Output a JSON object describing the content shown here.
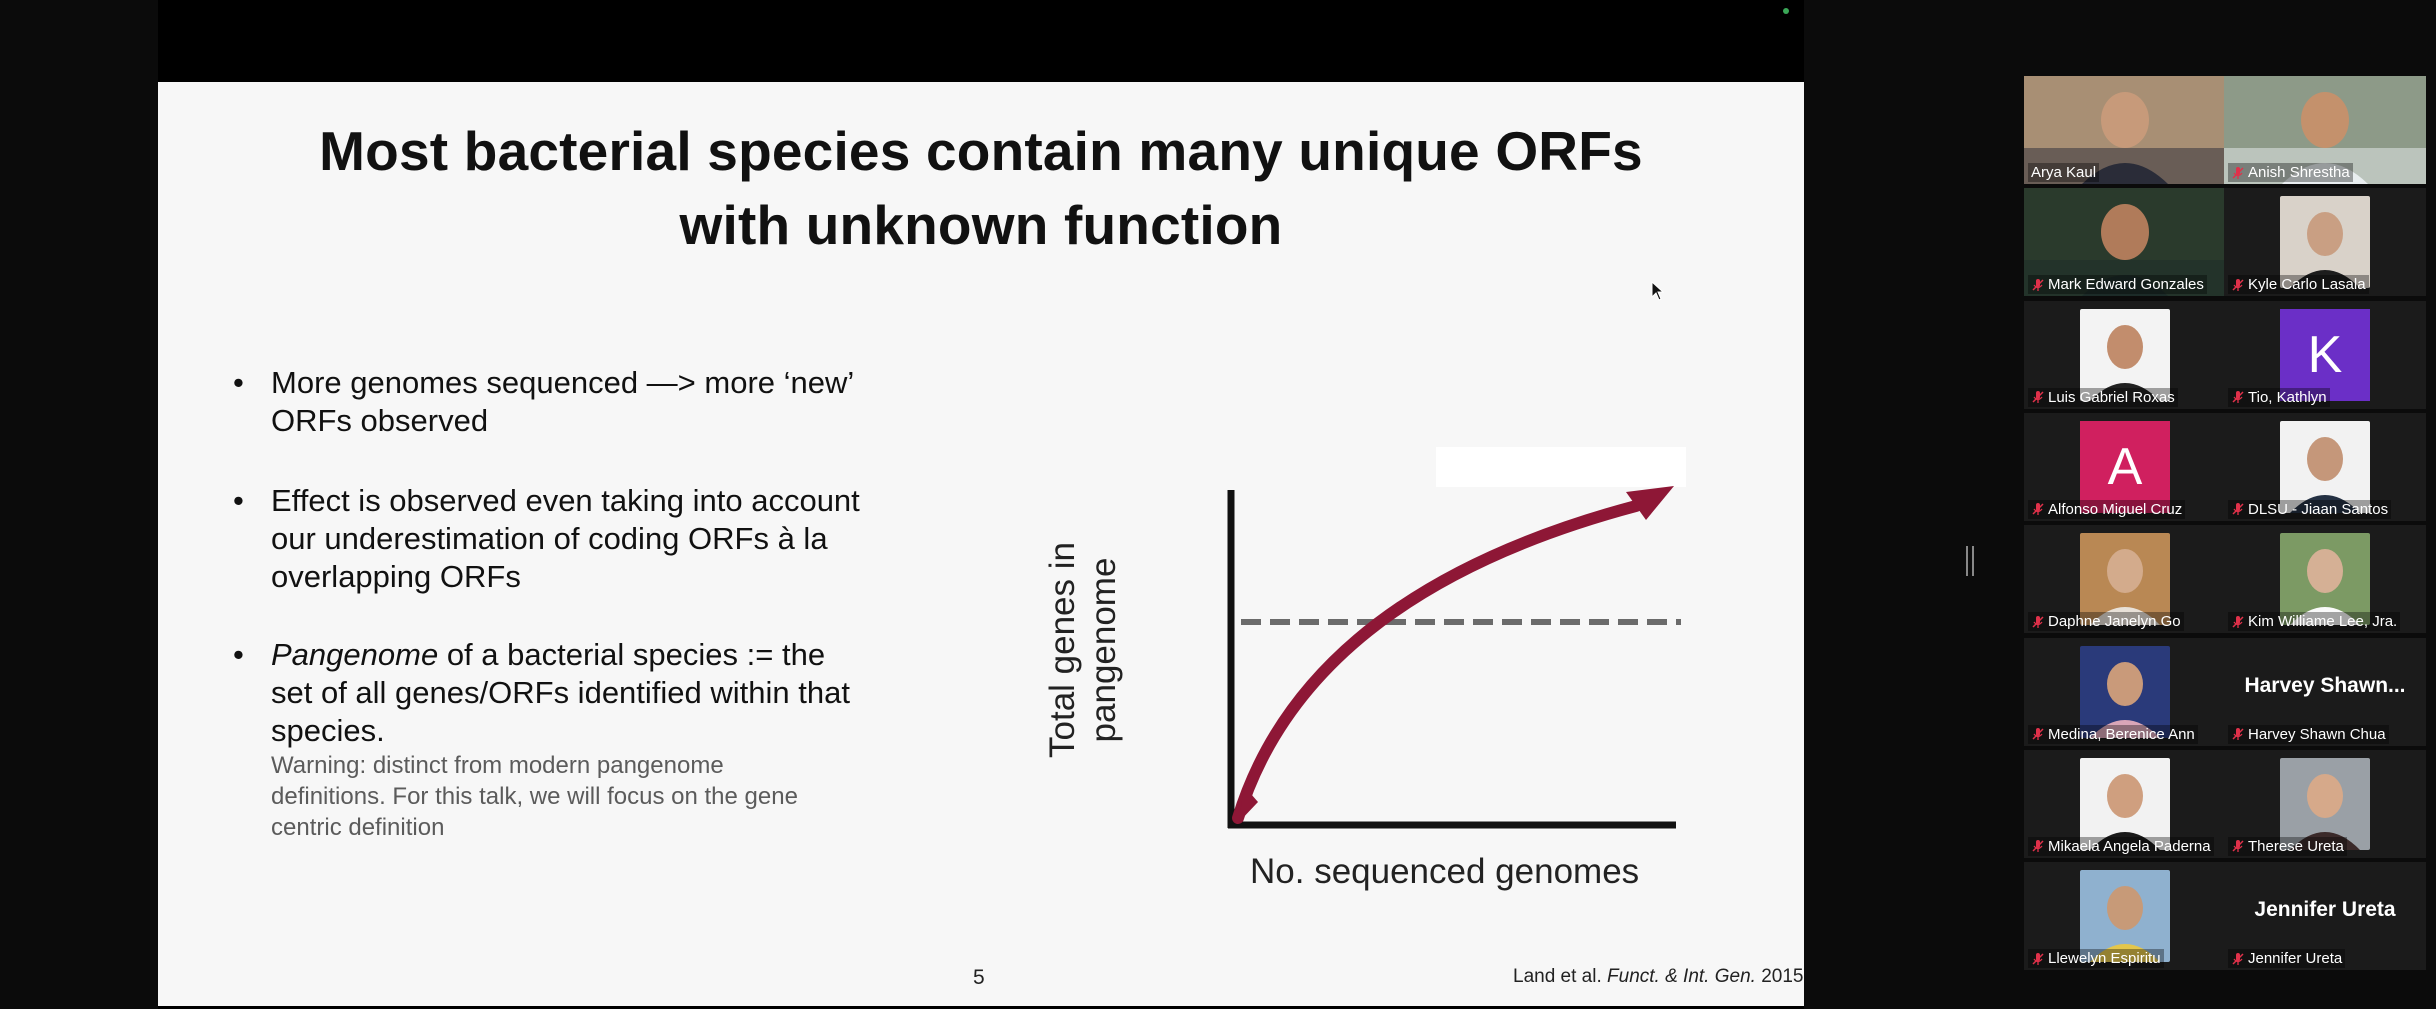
{
  "slide": {
    "title": "Most bacterial species contain many unique ORFs\nwith unknown function",
    "bullets": [
      "More genomes sequenced —> more ‘new’ ORFs observed",
      "Effect is observed even taking into account our underestimation of coding ORFs à la overlapping ORFs",
      "of a bacterial species := the set of all genes/ORFs identified within that species."
    ],
    "bullet3_italic": "Pangenome",
    "bullet_marker": "•",
    "note": "Warning: distinct from modern pangenome definitions. For this talk, we will focus on the gene centric definition",
    "page_number": "5",
    "citation_prefix": "Land et al. ",
    "citation_italic": "Funct. & Int. Gen.",
    "citation_suffix": " 2015"
  },
  "chart_data": {
    "type": "line",
    "ylabel": "Total genes in\npangenome",
    "xlabel": "No. sequenced genomes",
    "series": [
      {
        "style": "curved-arrow",
        "color": "#8e1736"
      },
      {
        "style": "dashed-horizontal",
        "color": "#6b6b6b"
      }
    ]
  },
  "participants": [
    {
      "name": "Arya Kaul",
      "muted": false,
      "active": true,
      "kind": "video",
      "bg": "#a88f74",
      "face": "#c79a7a",
      "shirt": "#2a2c38"
    },
    {
      "name": "Anish Shrestha",
      "muted": true,
      "kind": "video",
      "bg": "#8d9a88",
      "face": "#c4916c",
      "shirt": "#e9eef0"
    },
    {
      "name": "Mark Edward Gonzales",
      "muted": true,
      "kind": "video",
      "bg": "#2a3a2c",
      "face": "#b07b5a",
      "shirt": "#1c2b28"
    },
    {
      "name": "Kyle Carlo Lasala",
      "muted": true,
      "kind": "photo",
      "bg": "#d9d2c9",
      "face": "#c99f83",
      "shirt": "#1d1d1d"
    },
    {
      "name": "Luis Gabriel Roxas",
      "muted": true,
      "kind": "photo",
      "bg": "#f3f3f3",
      "face": "#c28d6d",
      "shirt": "#222"
    },
    {
      "name": "Tio, Kathlyn",
      "muted": true,
      "kind": "initial",
      "initial": "K",
      "color": "#6b2fc7"
    },
    {
      "name": "Alfonso Miguel Cruz",
      "muted": true,
      "kind": "initial",
      "initial": "A",
      "color": "#d0205f"
    },
    {
      "name": "DLSU - Jiaan Santos",
      "muted": true,
      "kind": "photo",
      "bg": "#f2f2f2",
      "face": "#c5977a",
      "shirt": "#243042"
    },
    {
      "name": "Daphne Janelyn Go",
      "muted": true,
      "kind": "photo",
      "bg": "#b98854",
      "face": "#d3ab8c",
      "shirt": "#e8e1d8"
    },
    {
      "name": "Kim Williame Lee, Jra.",
      "muted": true,
      "kind": "photo",
      "bg": "#7c9a64",
      "face": "#d5b095",
      "shirt": "#fafafa"
    },
    {
      "name": "Medina, Berenice Ann",
      "muted": true,
      "kind": "photo",
      "bg": "#2a3a7a",
      "face": "#c99a7a",
      "shirt": "#d9a6b8"
    },
    {
      "name": "Harvey Shawn Chua",
      "muted": true,
      "kind": "bigname",
      "display": "Harvey Shawn..."
    },
    {
      "name": "Mikaela Angela Paderna",
      "muted": true,
      "kind": "photo",
      "bg": "#f2f2f2",
      "face": "#cf9f7f",
      "shirt": "#1a1a1a"
    },
    {
      "name": "Therese Ureta",
      "muted": true,
      "kind": "photo",
      "bg": "#9aa0a6",
      "face": "#d6a98a",
      "shirt": "#3b2a2a"
    },
    {
      "name": "Llewelyn Espiritu",
      "muted": true,
      "kind": "photo",
      "bg": "#8fb1cf",
      "face": "#c79a78",
      "shirt": "#e3c64c"
    },
    {
      "name": "Jennifer Ureta",
      "muted": true,
      "kind": "bigname",
      "display": "Jennifer Ureta"
    }
  ]
}
